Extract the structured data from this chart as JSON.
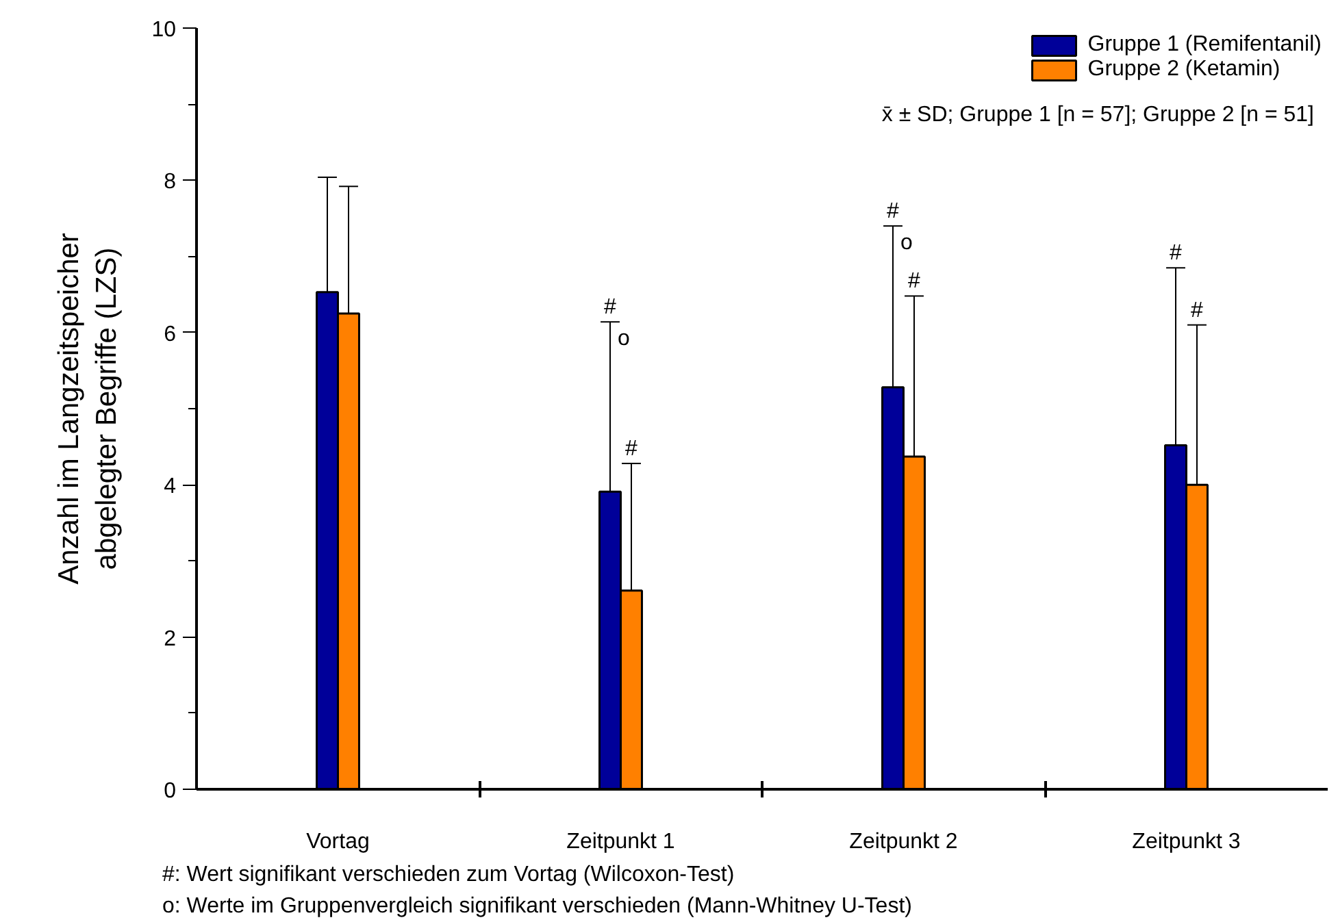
{
  "chart_data": {
    "type": "bar",
    "subtitle": "x̄ ± SD; Gruppe 1 [n = 57]; Gruppe 2 [n = 51]",
    "ylabel": "Anzahl im Langzeitspeicher\nabgelegter Begriffe (LZS)",
    "categories": [
      "Vortag",
      "Zeitpunkt 1",
      "Zeitpunkt 2",
      "Zeitpunkt 3"
    ],
    "series": [
      {
        "name": "Gruppe 1 (Remifentanil)",
        "color": "#000099",
        "values": [
          6.53,
          3.91,
          5.28,
          4.52
        ],
        "errors": [
          [
            6.53,
            8.04
          ],
          [
            3.91,
            6.14
          ],
          [
            5.28,
            7.4
          ],
          [
            4.52,
            6.85
          ]
        ]
      },
      {
        "name": "Gruppe 2 (Ketamin)",
        "color": "#ff8000",
        "values": [
          6.25,
          2.61,
          4.37,
          4.0
        ],
        "errors": [
          [
            6.25,
            7.92
          ],
          [
            2.61,
            4.28
          ],
          [
            4.37,
            6.48
          ],
          [
            4.0,
            6.1
          ]
        ]
      }
    ],
    "ylim": [
      0,
      10
    ],
    "yticks": [
      0,
      2,
      4,
      6,
      8,
      10
    ],
    "grid": false,
    "legend": "top right",
    "annotations": [
      {
        "text": "#",
        "x": "Zeitpunkt 1",
        "y": 6.14
      },
      {
        "text": "o",
        "x": "Zeitpunkt 1",
        "y": 6.14
      },
      {
        "text": "#",
        "x": "Zeitpunkt 1",
        "y": 4.28
      },
      {
        "text": "#",
        "x": "Zeitpunkt 2",
        "y": 7.4
      },
      {
        "text": "o",
        "x": "Zeitpunkt 2",
        "y": 7.4
      },
      {
        "text": "#",
        "x": "Zeitpunkt 2",
        "y": 6.48
      },
      {
        "text": "#",
        "x": "Zeitpunkt 3",
        "y": 6.85
      },
      {
        "text": "#",
        "x": "Zeitpunkt 3",
        "y": 6.1
      },
      "#: Wert signifikant verschieden zum Vortag (Wilcoxon-Test)",
      "o: Werte im Gruppenvergleich signifikant verschieden (Mann-Whitney U-Test)"
    ]
  }
}
